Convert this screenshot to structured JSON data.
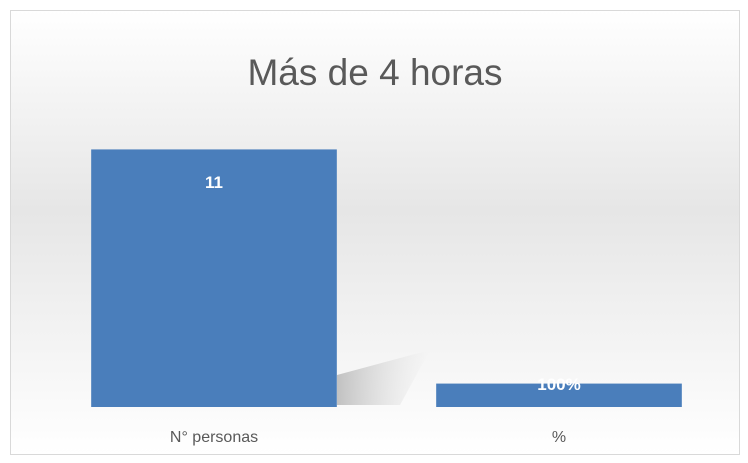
{
  "chart_data": {
    "type": "bar",
    "title": "Más de 4 horas",
    "categories": [
      "N° personas",
      "%"
    ],
    "values": [
      11,
      1
    ],
    "value_labels": [
      "11",
      "100%"
    ],
    "color": "#4a7ebb",
    "ylim": [
      0,
      12
    ],
    "grid": false
  }
}
